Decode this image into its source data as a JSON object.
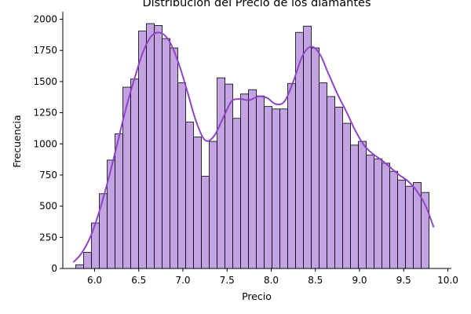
{
  "chart_data": {
    "type": "bar",
    "title": "Distribución del Precio de los diamantes",
    "xlabel": "Precio",
    "ylabel": "Frecuencia",
    "xlim": [
      5.64,
      10.04
    ],
    "ylim": [
      0,
      2060
    ],
    "xticks": [
      "6.0",
      "6.5",
      "7.0",
      "7.5",
      "8.0",
      "8.5",
      "9.0",
      "9.5",
      "10.0"
    ],
    "yticks": [
      "0",
      "250",
      "500",
      "750",
      "1000",
      "1250",
      "1500",
      "1750",
      "2000"
    ],
    "bin_start": 5.787,
    "bin_width": 0.0889,
    "values": [
      30,
      130,
      365,
      600,
      870,
      1080,
      1455,
      1520,
      1905,
      1965,
      1950,
      1845,
      1770,
      1490,
      1175,
      1055,
      740,
      1020,
      1530,
      1480,
      1205,
      1400,
      1435,
      1385,
      1300,
      1280,
      1280,
      1485,
      1895,
      1945,
      1770,
      1490,
      1380,
      1295,
      1165,
      990,
      1020,
      910,
      880,
      845,
      780,
      710,
      660,
      690,
      610
    ],
    "kde": {
      "x": [
        5.76,
        5.85,
        5.95,
        6.05,
        6.15,
        6.25,
        6.35,
        6.45,
        6.55,
        6.65,
        6.75,
        6.85,
        6.95,
        7.05,
        7.15,
        7.25,
        7.35,
        7.45,
        7.55,
        7.65,
        7.75,
        7.85,
        7.95,
        8.05,
        8.15,
        8.25,
        8.35,
        8.45,
        8.55,
        8.65,
        8.75,
        8.85,
        8.95,
        9.05,
        9.15,
        9.25,
        9.35,
        9.45,
        9.55,
        9.65,
        9.75,
        9.84
      ],
      "y": [
        50,
        120,
        250,
        450,
        700,
        980,
        1270,
        1520,
        1740,
        1870,
        1890,
        1820,
        1650,
        1420,
        1180,
        1030,
        1060,
        1200,
        1340,
        1360,
        1350,
        1380,
        1370,
        1320,
        1340,
        1500,
        1700,
        1780,
        1720,
        1560,
        1400,
        1260,
        1110,
        990,
        920,
        870,
        810,
        750,
        700,
        620,
        500,
        330
      ]
    },
    "bar_fill": "#c4a3e2",
    "bar_edge": "#000000",
    "kde_color": "#8e44c6",
    "grid": false,
    "legend": "none"
  }
}
